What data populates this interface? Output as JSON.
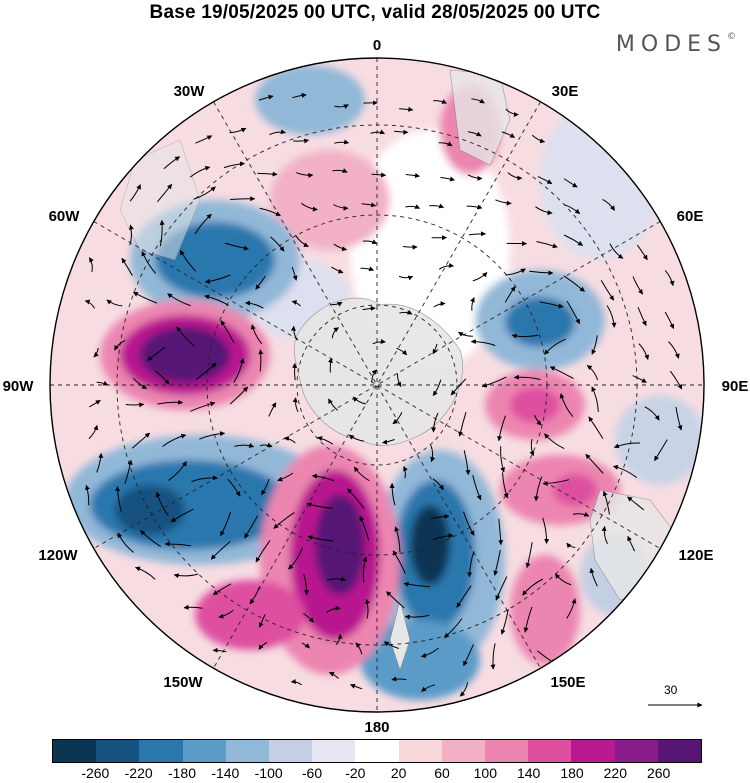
{
  "title": "Base 19/05/2025 00 UTC, valid 28/05/2025 00 UTC",
  "logo": "MODES",
  "logo_mark": "©",
  "longitude_labels": {
    "0": "0",
    "30E": "30E",
    "60E": "60E",
    "90E": "90E",
    "120E": "120E",
    "150E": "150E",
    "180": "180",
    "150W": "150W",
    "120W": "120W",
    "90W": "90W",
    "60W": "60W",
    "30W": "30W"
  },
  "vector_scale_label": "30",
  "colorbar": {
    "colors": [
      "#0b3553",
      "#14517f",
      "#2a77ad",
      "#5a9bc8",
      "#92b8d8",
      "#c4cfe3",
      "#e7e6f2",
      "#ffffff",
      "#f7d6dc",
      "#f2b1c5",
      "#ec85b0",
      "#de4fa0",
      "#b8198f",
      "#891b8a",
      "#571576"
    ],
    "ticks": [
      "-260",
      "-220",
      "-180",
      "-140",
      "-100",
      "-60",
      "-20",
      "20",
      "60",
      "100",
      "140",
      "180",
      "220",
      "260"
    ]
  },
  "projection": "south-polar-stereographic"
}
